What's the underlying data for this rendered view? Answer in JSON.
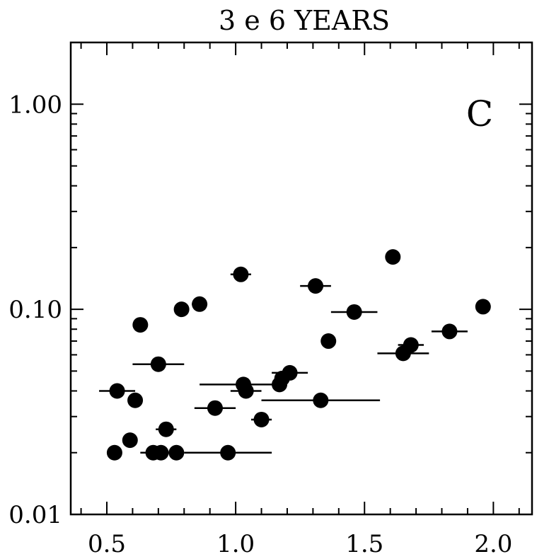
{
  "chart_data": {
    "type": "scatter",
    "title": "3 e 6  YEARS",
    "panel_label": "C",
    "xlabel": "",
    "ylabel": "",
    "xlim": [
      0.36,
      2.15
    ],
    "ylim": [
      0.01,
      2.0
    ],
    "yscale": "log",
    "xticks": [
      0.5,
      1.0,
      1.5,
      2.0
    ],
    "xtick_labels": [
      "0.5",
      "1.0",
      "1.5",
      "2.0"
    ],
    "yticks": [
      0.01,
      0.1,
      1.0
    ],
    "ytick_labels": [
      "0.01",
      "0.10",
      "1.00"
    ],
    "grid": false,
    "points": [
      {
        "x": 0.54,
        "y": 0.04,
        "xerr_low": 0.07,
        "xerr_high": 0.07
      },
      {
        "x": 0.53,
        "y": 0.02
      },
      {
        "x": 0.59,
        "y": 0.023
      },
      {
        "x": 0.61,
        "y": 0.036
      },
      {
        "x": 0.63,
        "y": 0.084
      },
      {
        "x": 0.7,
        "y": 0.054,
        "xerr_low": 0.1,
        "xerr_high": 0.1
      },
      {
        "x": 0.68,
        "y": 0.02,
        "xerr_low": 0.05,
        "xerr_high": 0.05
      },
      {
        "x": 0.71,
        "y": 0.02
      },
      {
        "x": 0.73,
        "y": 0.026,
        "xerr_low": 0.04,
        "xerr_high": 0.04
      },
      {
        "x": 0.77,
        "y": 0.02
      },
      {
        "x": 0.79,
        "y": 0.1
      },
      {
        "x": 0.86,
        "y": 0.106,
        "xerr_low": 0.03,
        "xerr_high": 0.03
      },
      {
        "x": 0.92,
        "y": 0.033,
        "xerr_low": 0.08,
        "xerr_high": 0.08
      },
      {
        "x": 0.97,
        "y": 0.02,
        "xerr_low": 0.17,
        "xerr_high": 0.17
      },
      {
        "x": 1.02,
        "y": 0.148,
        "xerr_low": 0.04,
        "xerr_high": 0.04
      },
      {
        "x": 1.03,
        "y": 0.043,
        "xerr_low": 0.17,
        "xerr_high": 0.17
      },
      {
        "x": 1.04,
        "y": 0.04,
        "xerr_low": 0.06,
        "xerr_high": 0.06
      },
      {
        "x": 1.1,
        "y": 0.029,
        "xerr_low": 0.04,
        "xerr_high": 0.04
      },
      {
        "x": 1.17,
        "y": 0.043,
        "xerr_low": 0.03,
        "xerr_high": 0.03
      },
      {
        "x": 1.18,
        "y": 0.046
      },
      {
        "x": 1.21,
        "y": 0.049,
        "xerr_low": 0.07,
        "xerr_high": 0.07
      },
      {
        "x": 1.31,
        "y": 0.13,
        "xerr_low": 0.06,
        "xerr_high": 0.06
      },
      {
        "x": 1.33,
        "y": 0.036,
        "xerr_low": 0.23,
        "xerr_high": 0.23
      },
      {
        "x": 1.36,
        "y": 0.07
      },
      {
        "x": 1.46,
        "y": 0.097,
        "xerr_low": 0.09,
        "xerr_high": 0.09
      },
      {
        "x": 1.61,
        "y": 0.18
      },
      {
        "x": 1.65,
        "y": 0.061,
        "xerr_low": 0.1,
        "xerr_high": 0.1
      },
      {
        "x": 1.68,
        "y": 0.067,
        "xerr_low": 0.05,
        "xerr_high": 0.05
      },
      {
        "x": 1.83,
        "y": 0.078,
        "xerr_low": 0.07,
        "xerr_high": 0.07
      },
      {
        "x": 1.96,
        "y": 0.103,
        "xerr_low": 0.02,
        "xerr_high": 0.02
      }
    ]
  }
}
